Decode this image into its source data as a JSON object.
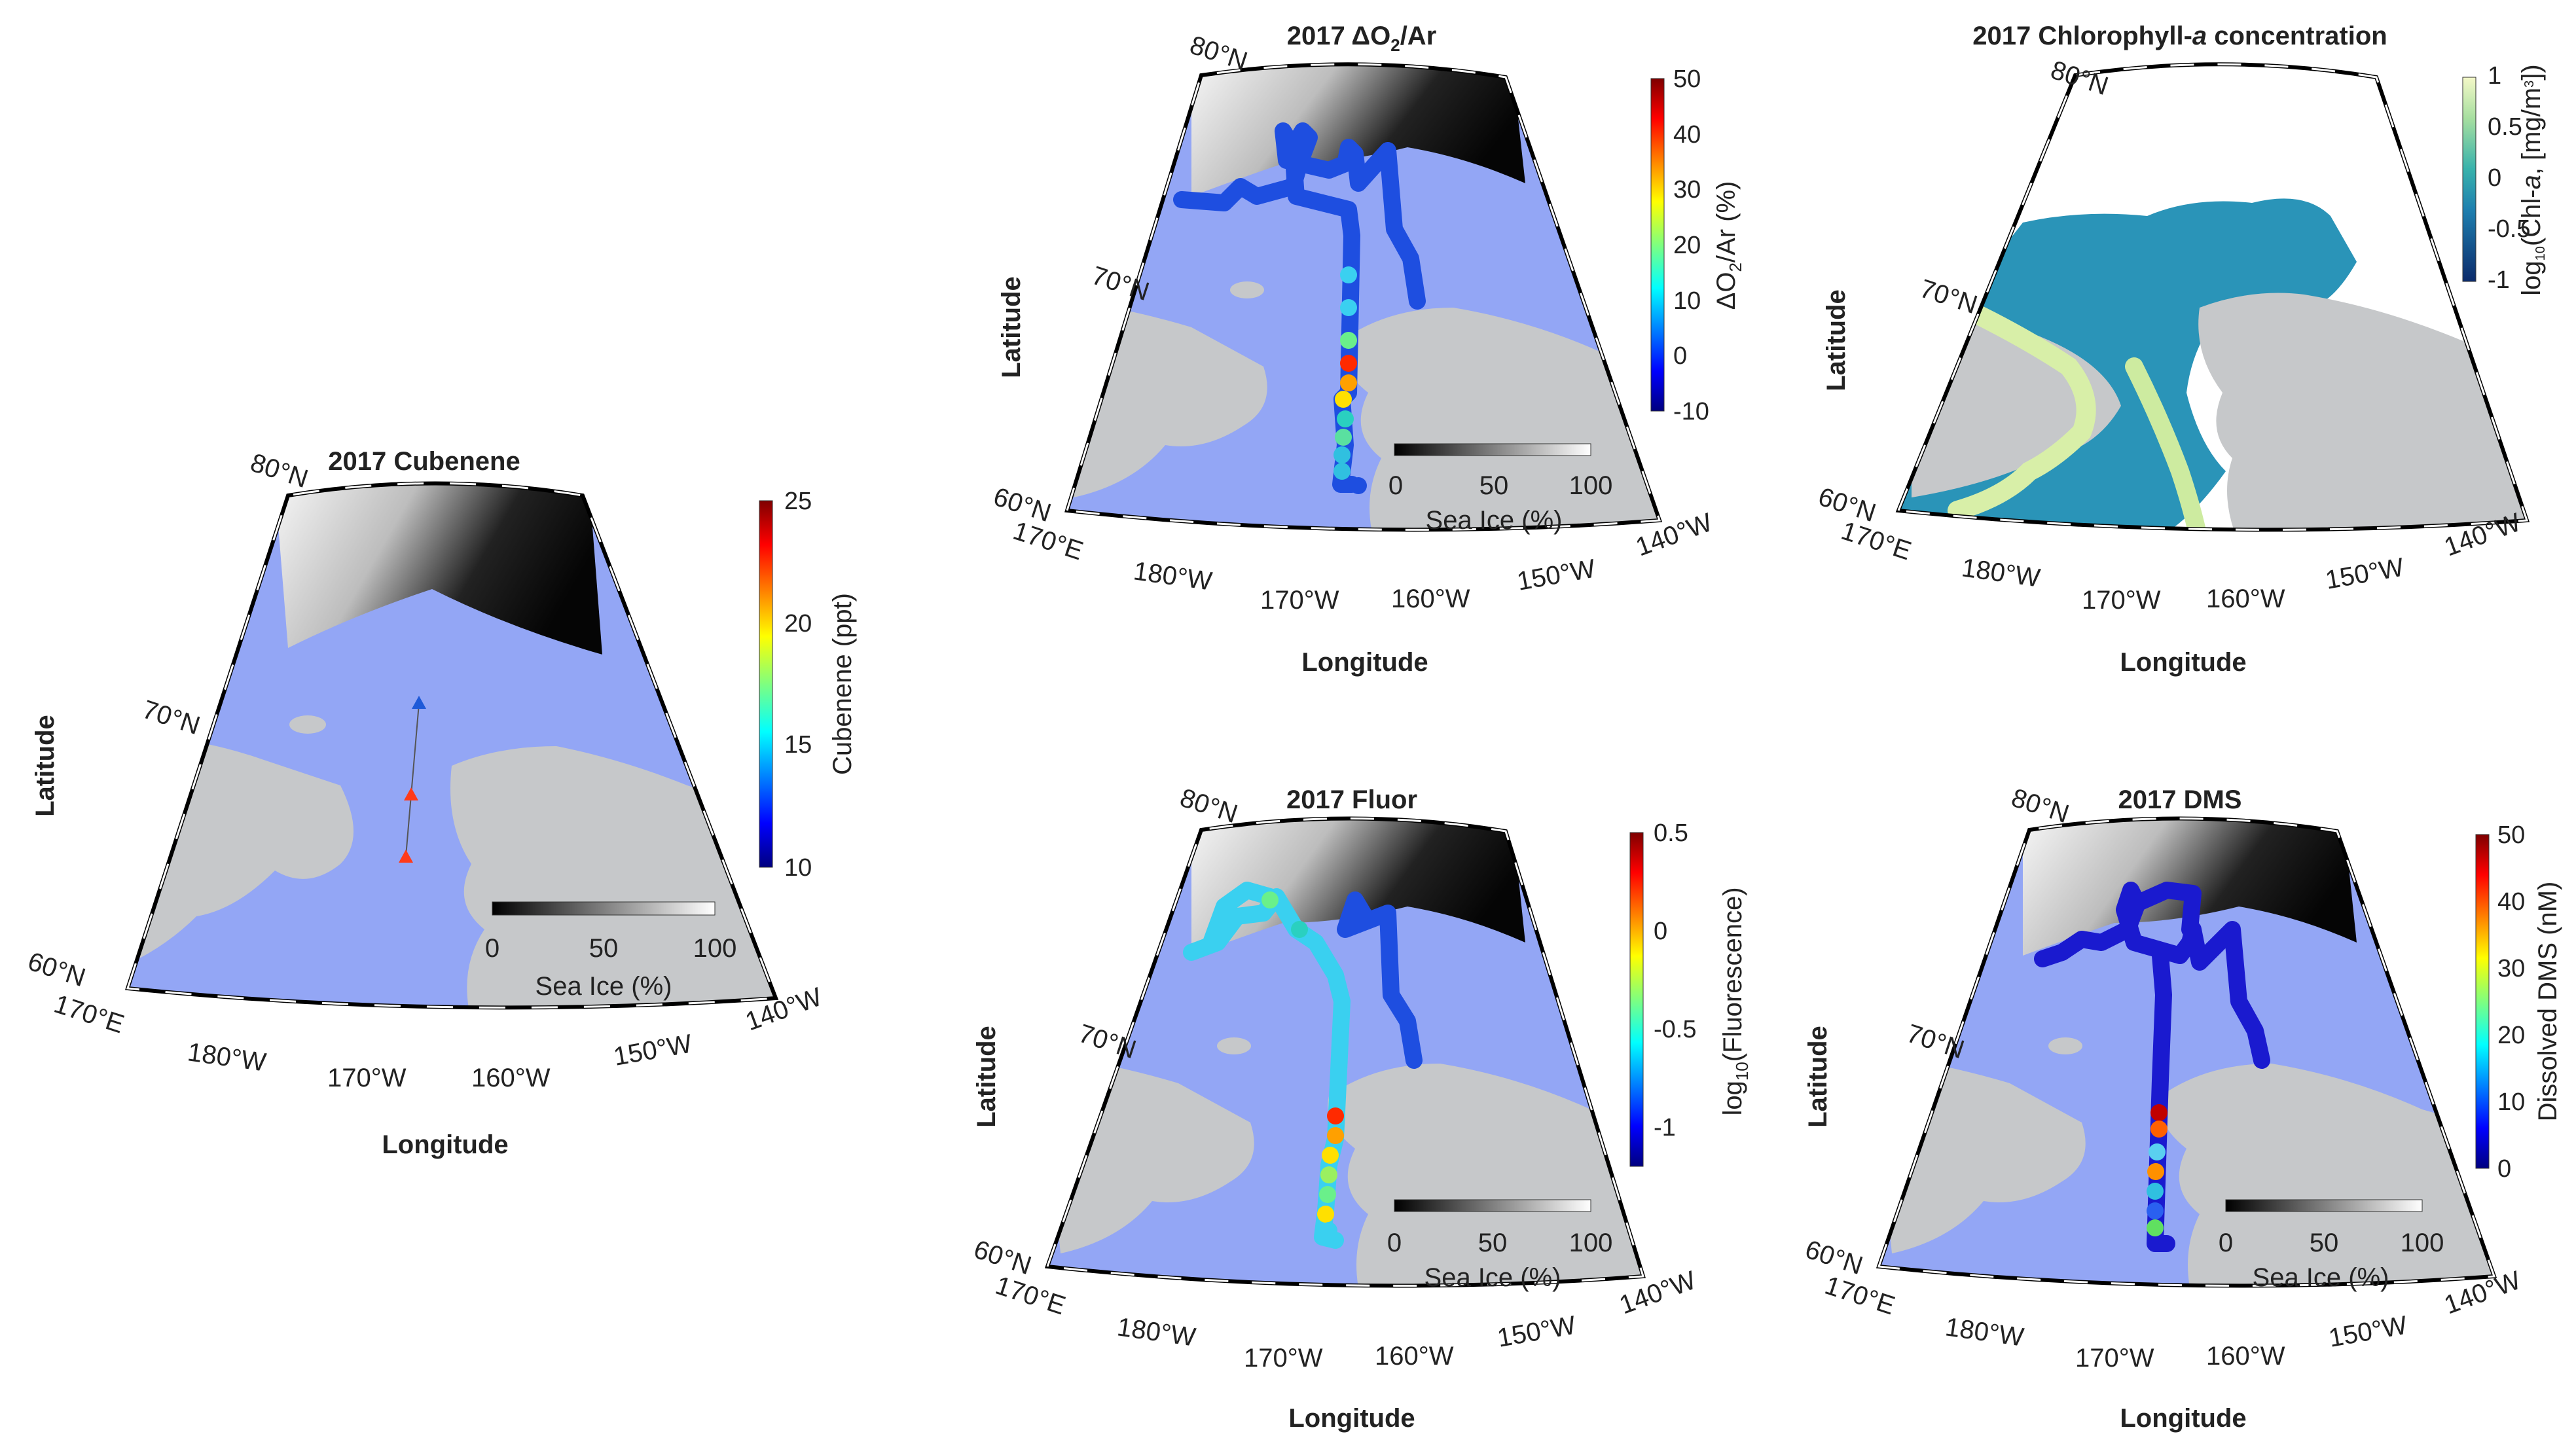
{
  "figure_panels": [
    {
      "id": "cubenene",
      "title": "2017 Cubenene",
      "colorbar": {
        "label": "Cubenene (ppt)",
        "ticks": [
          "25",
          "20",
          "15",
          "10"
        ],
        "range": [
          10,
          25
        ]
      },
      "track": "triangles",
      "has_ice_legend": true
    },
    {
      "id": "o2ar",
      "title_parts": {
        "pre": "2017 ",
        "delta": "Δ",
        "o": "O",
        "sub": "2",
        "post": "/Ar"
      },
      "colorbar": {
        "label_parts": {
          "delta": "Δ",
          "o": "O",
          "sub": "2",
          "post": "/Ar (%)"
        },
        "ticks": [
          "50",
          "40",
          "30",
          "20",
          "10",
          "0",
          "-10"
        ],
        "range": [
          -10,
          50
        ]
      },
      "track": "cruise",
      "has_ice_legend": true
    },
    {
      "id": "chl",
      "title_parts": {
        "pre": "2017 Chlorophyll-",
        "ital": "a",
        "post": " concentration"
      },
      "colorbar": {
        "label_parts": {
          "pre": "log",
          "sub": "10",
          "mid": "(Chl-",
          "ital": "a",
          "mid2": ", [mg/m",
          "sup": "3",
          "post": "])"
        },
        "ticks": [
          "1",
          "0.5",
          "0",
          "-0.5",
          "-1"
        ],
        "range": [
          -1,
          1
        ]
      },
      "track": "none",
      "has_ice_legend": false
    },
    {
      "id": "fluor",
      "title": "2017 Fluor",
      "colorbar": {
        "label_parts": {
          "pre": "log",
          "sub": "10",
          "post": "(Fluorescence)"
        },
        "ticks": [
          "0.5",
          "0",
          "-0.5",
          "-1"
        ],
        "range": [
          -1.2,
          0.5
        ]
      },
      "track": "cruise",
      "has_ice_legend": true
    },
    {
      "id": "dms",
      "title": "2017 DMS",
      "colorbar": {
        "label": "Dissolved DMS (nM)",
        "ticks": [
          "50",
          "40",
          "30",
          "20",
          "10",
          "0"
        ],
        "range": [
          0,
          50
        ]
      },
      "track": "cruise",
      "has_ice_legend": true
    }
  ],
  "axes": {
    "latitude_label": "Latitude",
    "longitude_label": "Longitude"
  },
  "lat_labels": [
    "60°N",
    "70°N",
    "80°N"
  ],
  "lon_labels": [
    "170°E",
    "180°W",
    "170°W",
    "160°W",
    "150°W",
    "140°W"
  ],
  "sea_ice_legend": {
    "label": "Sea Ice (%)",
    "ticks": [
      "0",
      "50",
      "100"
    ]
  },
  "colors": {
    "ocean": "#93A6F5",
    "land": "#C6C8CA",
    "ice_white": "#FFFFFF",
    "ice_black": "#050505"
  }
}
